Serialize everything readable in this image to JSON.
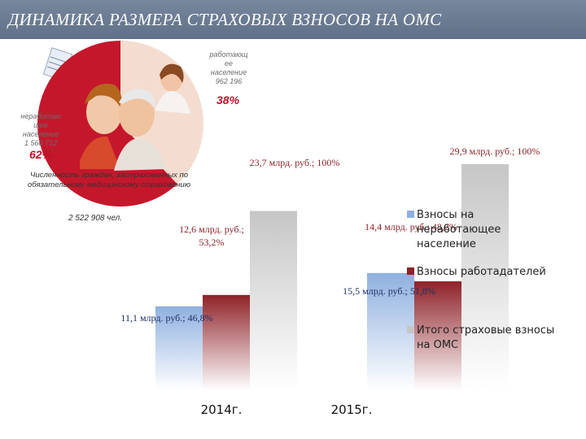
{
  "title": "ДИНАМИКА РАЗМЕРА СТРАХОВЫХ ВЗНОСОВ НА ОМС",
  "pie": {
    "working_label": [
      "работающ",
      "ее",
      "население",
      "962 196"
    ],
    "working_pct": "38%",
    "nonworking_label": [
      "неработаю",
      "щее",
      "население",
      "1 560 712"
    ],
    "nonworking_pct": "62%",
    "caption": "Численность граждан, застрахованных по обязательному медицинскому страхованию",
    "total": "2 522 908 чел.",
    "colors": {
      "working": "#f4ddd0",
      "nonworking": "#c4172c"
    }
  },
  "chart_data": {
    "type": "bar",
    "categories": [
      "2014г.",
      "2015г."
    ],
    "series": [
      {
        "name": "Взносы на неработающее население",
        "values": [
          11.1,
          15.5
        ],
        "color": "#8fb0e0",
        "labels": [
          "11,1 млрд. руб.; 46,8%",
          "15,5 млрд. руб.; 51,8%"
        ]
      },
      {
        "name": "Взносы работадателей",
        "values": [
          12.6,
          14.4
        ],
        "color": "#8e2228",
        "labels": [
          "12,6 млрд. руб.; 53,2%",
          "14,4 млрд. руб.; 48,2%"
        ]
      },
      {
        "name": "Итого страховые взносы на ОМС",
        "values": [
          23.7,
          29.9
        ],
        "color": "#c6c6c6",
        "labels": [
          "23,7 млрд. руб.; 100%",
          "29,9 млрд. руб.; 100%"
        ]
      }
    ],
    "ylim": [
      0,
      31.5
    ],
    "grid": false,
    "legend_position": "right"
  }
}
